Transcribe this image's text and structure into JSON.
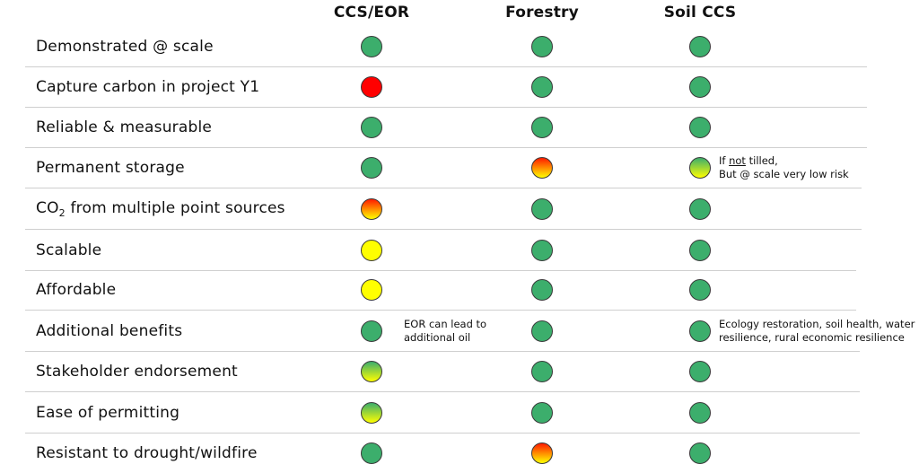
{
  "colors": {
    "green": "#3cae6c",
    "red": "#ff0000",
    "yellow": "#ffff00",
    "red_to_yellow": [
      "#ff1a00",
      "#ffff00"
    ],
    "yellow_green": [
      "#3cae6c",
      "#ffff00"
    ],
    "divider": "#cfcfcf"
  },
  "headers": [
    "CCS/EOR",
    "Forestry",
    "Soil CCS"
  ],
  "rows": [
    {
      "label": "Demonstrated @ scale",
      "status": [
        "green",
        "green",
        "green"
      ]
    },
    {
      "label": "Capture carbon in project Y1",
      "status": [
        "red",
        "green",
        "green"
      ]
    },
    {
      "label": "Reliable & measurable",
      "status": [
        "green",
        "green",
        "green"
      ]
    },
    {
      "label": "Permanent storage",
      "status": [
        "green",
        "red_to_yellow",
        "yellow_green"
      ],
      "notes": [
        null,
        null,
        {
          "line1_pre": "If ",
          "line1_underline": "not",
          "line1_post": " tilled,",
          "line2": "But @ scale very low risk"
        }
      ]
    },
    {
      "label_pre": "CO",
      "label_sub": "2",
      "label_post": " from multiple point sources",
      "status": [
        "red_to_yellow",
        "green",
        "green"
      ]
    },
    {
      "label": "Scalable",
      "status": [
        "yellow",
        "green",
        "green"
      ]
    },
    {
      "label": "Affordable",
      "status": [
        "yellow",
        "green",
        "green"
      ]
    },
    {
      "label": "Additional benefits",
      "status": [
        "green",
        "green",
        "green"
      ],
      "notes": [
        {
          "line1": "EOR can lead to",
          "line2": "additional oil"
        },
        null,
        {
          "line1": "Ecology restoration, soil health, water",
          "line2": "resilience, rural economic resilience"
        }
      ]
    },
    {
      "label": "Stakeholder endorsement",
      "status": [
        "yellow_green",
        "green",
        "green"
      ]
    },
    {
      "label": "Ease of permitting",
      "status": [
        "yellow_green",
        "green",
        "green"
      ]
    },
    {
      "label": "Resistant to drought/wildfire",
      "status": [
        "green",
        "red_to_yellow",
        "green"
      ]
    }
  ]
}
